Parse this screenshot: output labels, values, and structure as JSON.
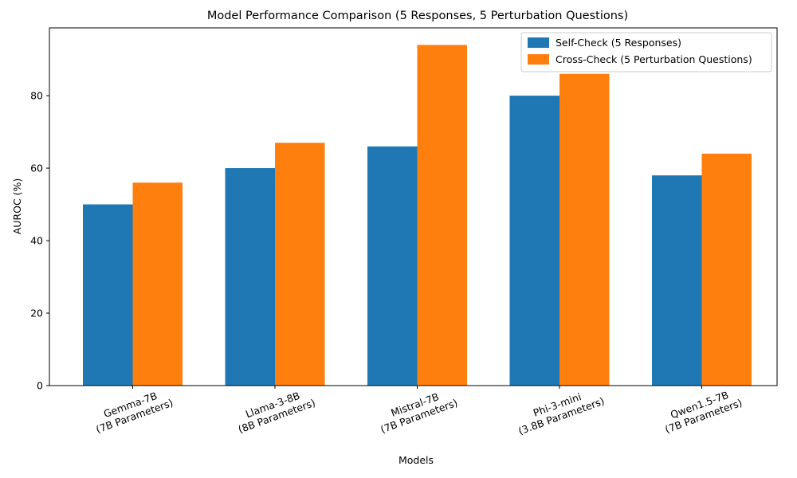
{
  "chart_data": {
    "type": "bar",
    "title": "Model Performance Comparison (5 Responses, 5 Perturbation Questions)",
    "xlabel": "Models",
    "ylabel": "AUROC (%)",
    "categories": [
      [
        "Gemma-7B",
        "(7B Parameters)"
      ],
      [
        "Llama-3-8B",
        "(8B Parameters)"
      ],
      [
        "Mistral-7B",
        "(7B Parameters)"
      ],
      [
        "Phi-3-mini",
        "(3.8B Parameters)"
      ],
      [
        "Qwen1.5-7B",
        "(7B Parameters)"
      ]
    ],
    "series": [
      {
        "name": "Self-Check (5 Responses)",
        "color": "#1f77b4",
        "values": [
          50,
          60,
          66,
          80,
          58
        ]
      },
      {
        "name": "Cross-Check (5 Perturbation Questions)",
        "color": "#ff7f0e",
        "values": [
          56,
          67,
          94,
          86,
          64
        ]
      }
    ],
    "ylim": [
      0,
      98.7
    ],
    "yticks": [
      0,
      20,
      40,
      60,
      80
    ],
    "legend_position": "top-right",
    "grid": false,
    "xtick_rotation": -20
  }
}
